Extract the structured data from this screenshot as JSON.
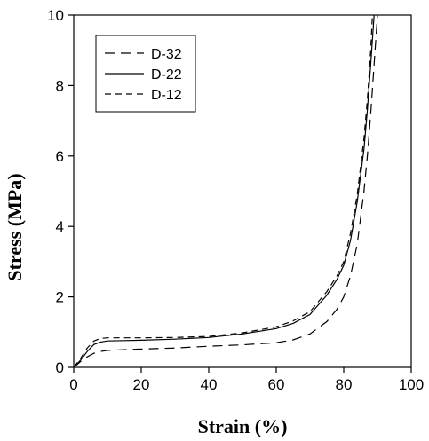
{
  "chart_data": {
    "type": "line",
    "xlabel": "Strain (%)",
    "ylabel": "Stress (MPa)",
    "xlim": [
      0,
      100
    ],
    "ylim": [
      0,
      10
    ],
    "xticks": [
      "0",
      "20",
      "40",
      "60",
      "80",
      "100"
    ],
    "yticks": [
      "0",
      "2",
      "4",
      "6",
      "8",
      "10"
    ],
    "grid": false,
    "legend_position": "top-left",
    "series": [
      {
        "name": "D-32",
        "style": "long-dash",
        "x": [
          0,
          2,
          4,
          6,
          8,
          10,
          15,
          20,
          30,
          40,
          50,
          60,
          65,
          70,
          75,
          78,
          80,
          82,
          84,
          86,
          87,
          88,
          89,
          90
        ],
        "y": [
          0,
          0.16,
          0.3,
          0.4,
          0.45,
          0.48,
          0.5,
          0.52,
          0.55,
          0.6,
          0.64,
          0.7,
          0.78,
          0.95,
          1.3,
          1.65,
          2.0,
          2.6,
          3.5,
          5.0,
          6.0,
          7.2,
          8.6,
          10.0
        ]
      },
      {
        "name": "D-22",
        "style": "solid",
        "x": [
          0,
          2,
          4,
          6,
          8,
          10,
          15,
          20,
          30,
          40,
          50,
          60,
          65,
          70,
          75,
          78,
          80,
          82,
          84,
          86,
          87,
          88,
          89
        ],
        "y": [
          0,
          0.2,
          0.45,
          0.65,
          0.72,
          0.75,
          0.76,
          0.77,
          0.8,
          0.85,
          0.95,
          1.1,
          1.25,
          1.5,
          2.05,
          2.5,
          2.9,
          3.6,
          4.7,
          6.2,
          7.3,
          8.6,
          10.0
        ]
      },
      {
        "name": "D-12",
        "style": "short-dash",
        "x": [
          0,
          2,
          4,
          6,
          8,
          10,
          15,
          20,
          30,
          40,
          50,
          60,
          65,
          70,
          75,
          78,
          80,
          82,
          84,
          86,
          87,
          88,
          88.5
        ],
        "y": [
          0,
          0.25,
          0.55,
          0.75,
          0.82,
          0.84,
          0.84,
          0.84,
          0.85,
          0.88,
          0.98,
          1.15,
          1.32,
          1.58,
          2.15,
          2.6,
          3.0,
          3.8,
          4.9,
          6.5,
          7.6,
          9.0,
          10.0
        ]
      }
    ]
  }
}
